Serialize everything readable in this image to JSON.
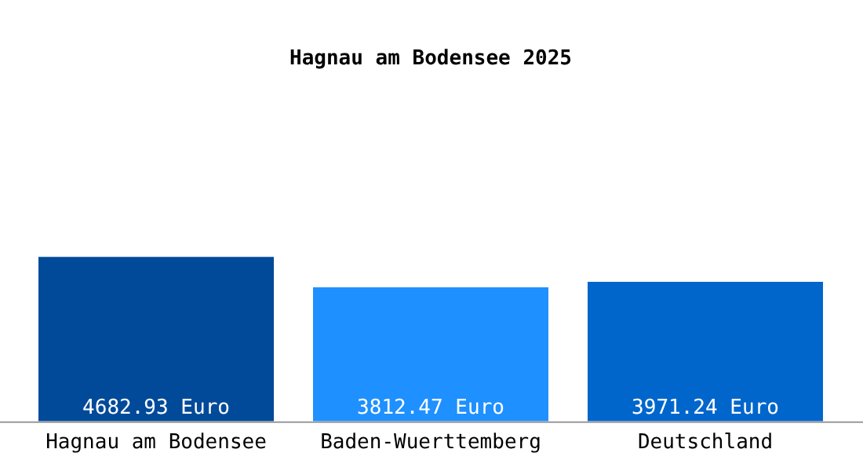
{
  "chart_data": {
    "type": "bar",
    "title": "Hagnau am Bodensee 2025",
    "categories": [
      "Hagnau am Bodensee",
      "Baden-Wuerttemberg",
      "Deutschland"
    ],
    "values": [
      4682.93,
      3812.47,
      3971.24
    ],
    "colors": [
      "#004a99",
      "#1e90ff",
      "#0066cc"
    ],
    "value_labels": [
      "4682.93 Euro",
      "3812.47 Euro",
      "3971.24 Euro"
    ],
    "grid": false,
    "legend": false
  }
}
